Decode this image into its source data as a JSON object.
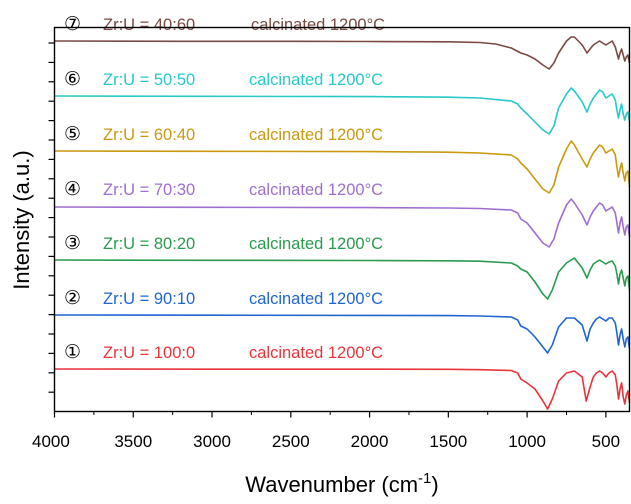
{
  "chart_data": {
    "type": "line",
    "xlabel": "Wavenumber (cm",
    "xlabel_sup": "-1",
    "xlabel_close": ")",
    "ylabel": "Intensity (a.u.)",
    "xlim": [
      4000,
      350
    ],
    "x_reversed": true,
    "xticks": [
      4000,
      3500,
      3000,
      2500,
      2000,
      1500,
      1000,
      500
    ],
    "xtick_labels": [
      "4000",
      "3500",
      "3000",
      "2500",
      "2000",
      "1500",
      "1000",
      "500"
    ],
    "y_tick_labels_shown": false,
    "grid": false,
    "series": [
      {
        "marker": "①",
        "name": "Zr:U = 100:0",
        "note": "calcinated 1200°C",
        "color": "#e8343a",
        "points": [
          [
            4000,
            0
          ],
          [
            3000,
            0.2
          ],
          [
            2000,
            0.2
          ],
          [
            1500,
            0.3
          ],
          [
            1300,
            0.7
          ],
          [
            1100,
            1.5
          ],
          [
            1060,
            4
          ],
          [
            1040,
            10
          ],
          [
            1000,
            14
          ],
          [
            950,
            20
          ],
          [
            900,
            32
          ],
          [
            870,
            40
          ],
          [
            840,
            30
          ],
          [
            800,
            12
          ],
          [
            750,
            4
          ],
          [
            700,
            2
          ],
          [
            650,
            8
          ],
          [
            625,
            32
          ],
          [
            600,
            18
          ],
          [
            580,
            8
          ],
          [
            560,
            4
          ],
          [
            540,
            2
          ],
          [
            520,
            4
          ],
          [
            500,
            8
          ],
          [
            480,
            4
          ],
          [
            460,
            2
          ],
          [
            440,
            6
          ],
          [
            430,
            16
          ],
          [
            420,
            30
          ],
          [
            410,
            20
          ],
          [
            400,
            14
          ],
          [
            390,
            28
          ],
          [
            380,
            35
          ],
          [
            370,
            26
          ],
          [
            360,
            22
          ],
          [
            350,
            34
          ]
        ]
      },
      {
        "marker": "②",
        "name": "Zr:U = 90:10",
        "note": "calcinated 1200°C",
        "color": "#1f66cf",
        "points": [
          [
            4000,
            0
          ],
          [
            3000,
            0.2
          ],
          [
            2000,
            0.4
          ],
          [
            1500,
            0.6
          ],
          [
            1300,
            1
          ],
          [
            1100,
            2
          ],
          [
            1060,
            5
          ],
          [
            1040,
            11
          ],
          [
            1000,
            14
          ],
          [
            950,
            22
          ],
          [
            900,
            32
          ],
          [
            870,
            38
          ],
          [
            840,
            30
          ],
          [
            800,
            12
          ],
          [
            750,
            3
          ],
          [
            700,
            3
          ],
          [
            650,
            10
          ],
          [
            620,
            26
          ],
          [
            600,
            14
          ],
          [
            580,
            8
          ],
          [
            560,
            4
          ],
          [
            540,
            2
          ],
          [
            520,
            4
          ],
          [
            500,
            6
          ],
          [
            480,
            3
          ],
          [
            460,
            3
          ],
          [
            440,
            8
          ],
          [
            430,
            18
          ],
          [
            420,
            30
          ],
          [
            410,
            20
          ],
          [
            400,
            14
          ],
          [
            390,
            24
          ],
          [
            380,
            32
          ],
          [
            370,
            24
          ],
          [
            360,
            22
          ],
          [
            350,
            34
          ]
        ]
      },
      {
        "marker": "③",
        "name": "Zr:U = 80:20",
        "note": "calcinated 1200°C",
        "color": "#2b9a4f",
        "points": [
          [
            4000,
            0
          ],
          [
            3000,
            0.3
          ],
          [
            2000,
            0.5
          ],
          [
            1500,
            0.8
          ],
          [
            1300,
            1.2
          ],
          [
            1100,
            3
          ],
          [
            1060,
            6
          ],
          [
            1040,
            9
          ],
          [
            1000,
            12
          ],
          [
            950,
            22
          ],
          [
            900,
            34
          ],
          [
            870,
            39
          ],
          [
            840,
            30
          ],
          [
            800,
            12
          ],
          [
            750,
            3
          ],
          [
            720,
            0
          ],
          [
            700,
            -2
          ],
          [
            650,
            8
          ],
          [
            620,
            18
          ],
          [
            600,
            10
          ],
          [
            580,
            4
          ],
          [
            560,
            2
          ],
          [
            540,
            0
          ],
          [
            520,
            2
          ],
          [
            500,
            4
          ],
          [
            480,
            2
          ],
          [
            460,
            1
          ],
          [
            440,
            6
          ],
          [
            430,
            14
          ],
          [
            420,
            24
          ],
          [
            410,
            14
          ],
          [
            400,
            10
          ],
          [
            390,
            18
          ],
          [
            380,
            26
          ],
          [
            370,
            18
          ],
          [
            360,
            16
          ],
          [
            350,
            30
          ]
        ]
      },
      {
        "marker": "④",
        "name": "Zr:U = 70:30",
        "note": "calcinated 1200°C",
        "color": "#9e6fd0",
        "points": [
          [
            4000,
            0
          ],
          [
            3000,
            0.3
          ],
          [
            2000,
            0.6
          ],
          [
            1500,
            1
          ],
          [
            1300,
            1.5
          ],
          [
            1100,
            3
          ],
          [
            1060,
            6
          ],
          [
            1040,
            12
          ],
          [
            1000,
            16
          ],
          [
            950,
            26
          ],
          [
            900,
            36
          ],
          [
            860,
            40
          ],
          [
            830,
            32
          ],
          [
            800,
            16
          ],
          [
            750,
            -2
          ],
          [
            720,
            -8
          ],
          [
            700,
            -4
          ],
          [
            650,
            8
          ],
          [
            620,
            18
          ],
          [
            600,
            10
          ],
          [
            580,
            4
          ],
          [
            560,
            0
          ],
          [
            540,
            -4
          ],
          [
            520,
            -2
          ],
          [
            500,
            4
          ],
          [
            480,
            2
          ],
          [
            460,
            0
          ],
          [
            440,
            6
          ],
          [
            430,
            16
          ],
          [
            420,
            26
          ],
          [
            410,
            16
          ],
          [
            400,
            10
          ],
          [
            390,
            20
          ],
          [
            380,
            28
          ],
          [
            370,
            20
          ],
          [
            360,
            18
          ],
          [
            350,
            30
          ]
        ]
      },
      {
        "marker": "⑤",
        "name": "Zr:U = 60:40",
        "note": "calcinated 1200°C",
        "color": "#c99a10",
        "points": [
          [
            4000,
            0
          ],
          [
            3000,
            0.3
          ],
          [
            2000,
            0.6
          ],
          [
            1500,
            1.2
          ],
          [
            1300,
            2
          ],
          [
            1100,
            4
          ],
          [
            1060,
            8
          ],
          [
            1040,
            12
          ],
          [
            1000,
            18
          ],
          [
            950,
            28
          ],
          [
            900,
            38
          ],
          [
            860,
            42
          ],
          [
            830,
            34
          ],
          [
            800,
            16
          ],
          [
            750,
            -2
          ],
          [
            720,
            -10
          ],
          [
            700,
            -6
          ],
          [
            650,
            8
          ],
          [
            620,
            16
          ],
          [
            600,
            8
          ],
          [
            580,
            2
          ],
          [
            560,
            -2
          ],
          [
            540,
            -6
          ],
          [
            520,
            -4
          ],
          [
            500,
            2
          ],
          [
            480,
            0
          ],
          [
            460,
            -2
          ],
          [
            440,
            4
          ],
          [
            430,
            16
          ],
          [
            420,
            26
          ],
          [
            410,
            18
          ],
          [
            400,
            12
          ],
          [
            390,
            22
          ],
          [
            380,
            30
          ],
          [
            370,
            22
          ],
          [
            360,
            20
          ],
          [
            350,
            36
          ]
        ]
      },
      {
        "marker": "⑥",
        "name": "Zr:U = 50:50",
        "note": "calcinated 1200°C",
        "color": "#28c9c9",
        "points": [
          [
            4000,
            0
          ],
          [
            3000,
            0.3
          ],
          [
            2000,
            0.6
          ],
          [
            1500,
            1.2
          ],
          [
            1300,
            2
          ],
          [
            1100,
            5
          ],
          [
            1060,
            8
          ],
          [
            1040,
            12
          ],
          [
            1000,
            18
          ],
          [
            950,
            26
          ],
          [
            900,
            34
          ],
          [
            860,
            38
          ],
          [
            830,
            30
          ],
          [
            800,
            12
          ],
          [
            750,
            -2
          ],
          [
            720,
            -8
          ],
          [
            700,
            -5
          ],
          [
            650,
            6
          ],
          [
            620,
            16
          ],
          [
            600,
            8
          ],
          [
            580,
            2
          ],
          [
            560,
            -2
          ],
          [
            540,
            -6
          ],
          [
            520,
            -4
          ],
          [
            500,
            2
          ],
          [
            480,
            0
          ],
          [
            460,
            -2
          ],
          [
            440,
            4
          ],
          [
            430,
            14
          ],
          [
            420,
            22
          ],
          [
            410,
            14
          ],
          [
            400,
            8
          ],
          [
            390,
            18
          ],
          [
            380,
            24
          ],
          [
            370,
            18
          ],
          [
            360,
            16
          ],
          [
            350,
            26
          ]
        ]
      },
      {
        "marker": "⑦",
        "name": "Zr:U = 40:60",
        "note": "calcinated 1200°C",
        "color": "#7a4a44",
        "points": [
          [
            4000,
            0
          ],
          [
            3200,
            0.3
          ],
          [
            2500,
            0.3
          ],
          [
            2000,
            0.5
          ],
          [
            1500,
            0.8
          ],
          [
            1300,
            1.5
          ],
          [
            1200,
            3
          ],
          [
            1100,
            7
          ],
          [
            1040,
            12
          ],
          [
            1000,
            14
          ],
          [
            950,
            18
          ],
          [
            900,
            24
          ],
          [
            860,
            28
          ],
          [
            830,
            22
          ],
          [
            800,
            12
          ],
          [
            750,
            0
          ],
          [
            720,
            -4
          ],
          [
            700,
            -4
          ],
          [
            650,
            4
          ],
          [
            620,
            12
          ],
          [
            600,
            8
          ],
          [
            580,
            4
          ],
          [
            560,
            2
          ],
          [
            540,
            0
          ],
          [
            520,
            2
          ],
          [
            500,
            4
          ],
          [
            480,
            2
          ],
          [
            460,
            0
          ],
          [
            440,
            6
          ],
          [
            430,
            12
          ],
          [
            420,
            18
          ],
          [
            410,
            12
          ],
          [
            400,
            8
          ],
          [
            390,
            14
          ],
          [
            380,
            20
          ],
          [
            370,
            16
          ],
          [
            360,
            14
          ],
          [
            350,
            22
          ]
        ]
      }
    ]
  }
}
